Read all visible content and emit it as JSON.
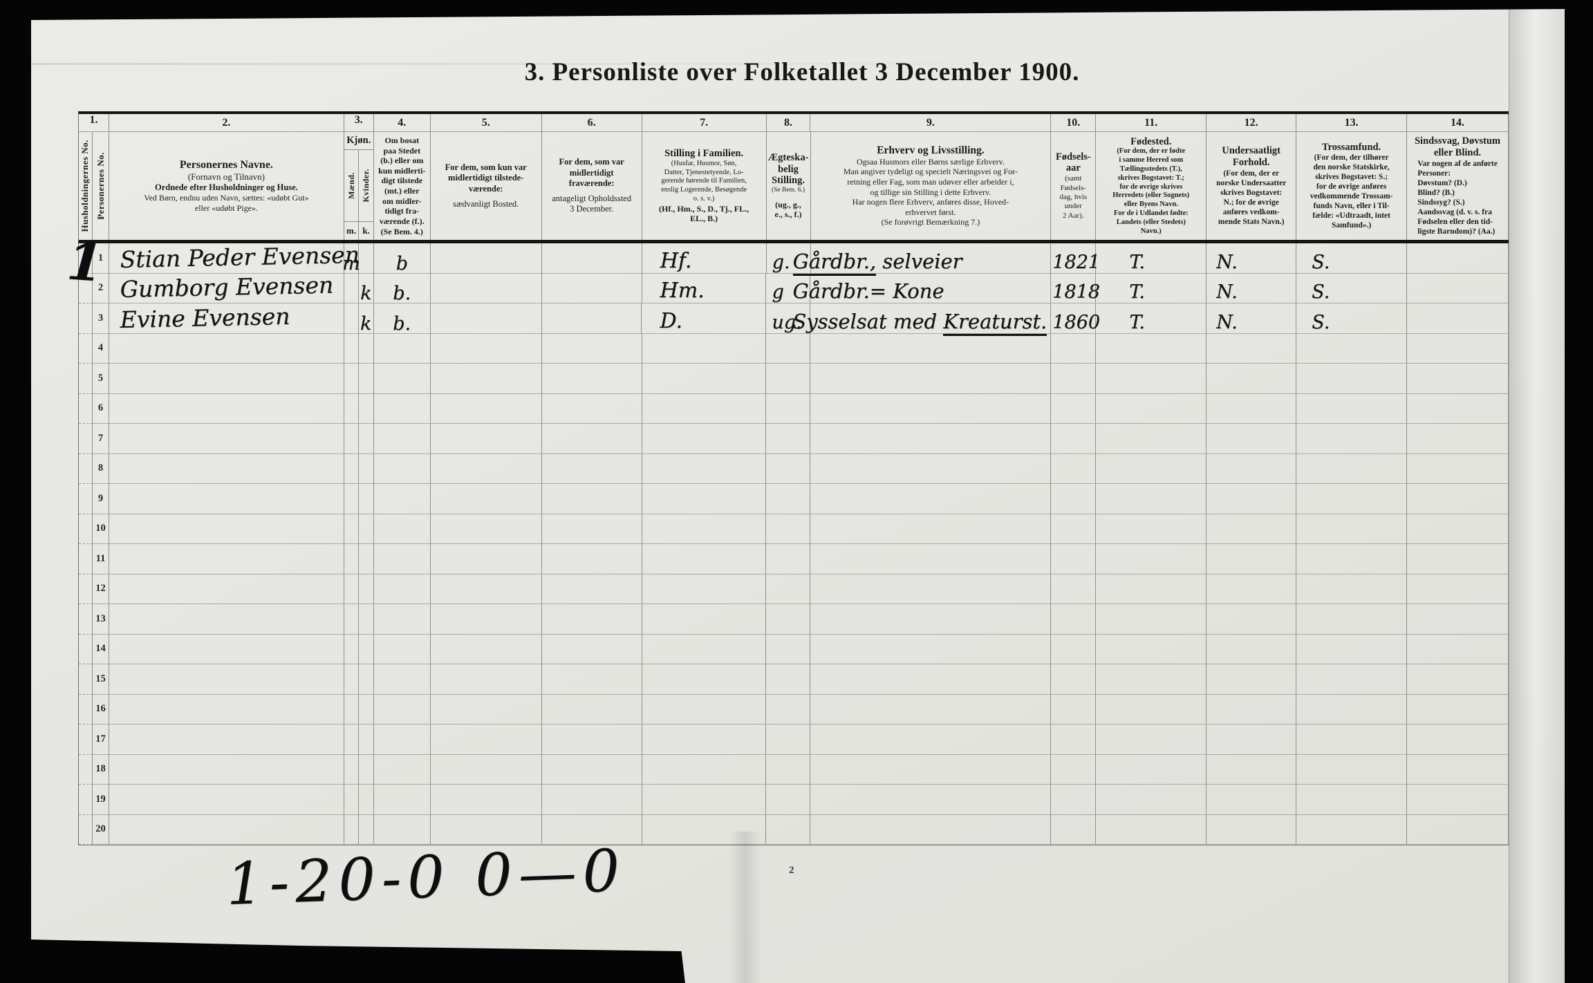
{
  "title": "3. Personliste over Folketallet 3 December 1900.",
  "scan": {
    "page_number": "2",
    "tally": "1-20-0 0—0"
  },
  "header": {
    "col1": {
      "no": "1.",
      "sub_a": "Husholdningernes No.",
      "sub_b": "Personernes No."
    },
    "col2": {
      "no": "2.",
      "title": "Personernes Navne.",
      "line2": "(Fornavn og Tilnavn)",
      "line3": "Ordnede efter Husholdninger og Huse.",
      "line4": "Ved Børn, endnu uden Navn, sættes: «udøbt Gut»",
      "line5": "eller «udøbt Pige»."
    },
    "col3": {
      "no": "3.",
      "title": "Kjøn.",
      "m": "Mænd.",
      "k": "Kvinder.",
      "m_abbr": "m.",
      "k_abbr": "k."
    },
    "col4": {
      "no": "4.",
      "text": "Om bosat\npaa Stedet\n(b.) eller om\nkun midlerti-\ndigt tilstede\n(mt.) eller\nom midler-\ntidigt fra-\nværende (f.).\n(Se Bem. 4.)"
    },
    "col5": {
      "no": "5.",
      "p1": "For dem, som kun var\nmidlertidigt tilstede-\nværende:",
      "p2": "sædvanligt Bosted."
    },
    "col6": {
      "no": "6.",
      "p1": "For dem, som var\nmidlertidigt\nfraværende:",
      "p2": "antageligt Opholdssted\n3 December."
    },
    "col7": {
      "no": "7.",
      "title": "Stilling i Familien.",
      "body": "(Husfar, Husmor, Søn,\nDatter, Tjenestetyende, Lo-\ngerende hørende til Familien,\nenslig Logerende, Besøgende\no. s. v.)",
      "abbr": "(Hf., Hm., S., D., Tj., FL.,\nEL., B.)"
    },
    "col8": {
      "no": "8.",
      "title": "Ægteska-\nbelig\nStilling.",
      "note": "(Se Bem. 6.)",
      "abbr": "(ug., g.,\ne., s., f.)"
    },
    "col9": {
      "no": "9.",
      "title": "Erhverv og Livsstilling.",
      "body": "Ogsaa Husmors eller Børns særlige Erhverv.\nMan angiver tydeligt og specielt Næringsvei og For-\nretning eller Fag, som man udøver eller arbeider i,\nog tillige sin Stilling i dette Erhverv.\nHar nogen flere Erhverv, anføres disse, Hoved-\nerhvervet først.\n(Se forøvrigt Bemærkning 7.)"
    },
    "col10": {
      "no": "10.",
      "title": "Fødsels-\naar",
      "sub": "(samt\nFødsels-\ndag, hvis\nunder\n2 Aar)."
    },
    "col11": {
      "no": "11.",
      "title": "Fødested.",
      "body": "(For dem, der er fødte\ni samme Herred som\nTællingsstedets (T.),\nskrives Bogstavet: T.;\nfor de øvrige skrives\nHerredets (eller Sognets)\neller Byens Navn.\nFor de i Udlandet fødte:\nLandets (eller Stedets)\nNavn.)"
    },
    "col12": {
      "no": "12.",
      "title": "Undersaatligt\nForhold.",
      "body": "(For dem, der er\nnorske Undersaatter\nskrives Bogstavet:\nN.; for de øvrige\nanføres vedkom-\nmende Stats Navn.)"
    },
    "col13": {
      "no": "13.",
      "title": "Trossamfund.",
      "body": "(For dem, der tilhører\nden norske Statskirke,\nskrives Bogstavet: S.;\nfor de øvrige anføres\nvedkommende Trossam-\nfunds Navn, eller i Til-\nfælde: «Udtraadt, intet\nSamfund».)"
    },
    "col14": {
      "no": "14.",
      "title": "Sindssvag, Døvstum\neller Blind.",
      "body": "Var nogen af de anførte\nPersoner:\nDøvstum?      (D.)\nBlind?            (B.)\nSindssyg?      (S.)\nAandssvag (d. v. s. fra\nFødselen eller den tid-\nligste Barndom)? (Aa.)"
    }
  },
  "rows": [
    {
      "no": "1",
      "household": "1",
      "name": "Stian Peder Evensen",
      "m": "m",
      "k": "",
      "bosat": "b",
      "stilling": "Hf.",
      "aegteskab": "g.",
      "erhverv_pre": "",
      "erhverv_mark": "Gårdbr.,",
      "erhverv_post": " selveier",
      "aar": "1821",
      "fodested": "T.",
      "undersaat": "N.",
      "trossamfund": "S."
    },
    {
      "no": "2",
      "household": "",
      "name": "Gumborg Evensen",
      "m": "",
      "k": "k",
      "bosat": "b.",
      "stilling": "Hm.",
      "aegteskab": "g",
      "erhverv_pre": "",
      "erhverv_mark": "",
      "erhverv_post": "Gårdbr.= Kone",
      "aar": "1818",
      "fodested": "T.",
      "undersaat": "N.",
      "trossamfund": "S."
    },
    {
      "no": "3",
      "household": "",
      "name": "Evine Evensen",
      "m": "",
      "k": "k",
      "bosat": "b.",
      "stilling": "D.",
      "aegteskab": "ug.",
      "erhverv_pre": "Sysselsat med ",
      "erhverv_mark": "Kreaturst.",
      "erhverv_post": "",
      "aar": "1860",
      "fodested": "T.",
      "undersaat": "N.",
      "trossamfund": "S."
    },
    {
      "no": "4",
      "household": "",
      "name": "",
      "m": "",
      "k": "",
      "bosat": "",
      "stilling": "",
      "aegteskab": "",
      "erhverv_pre": "",
      "erhverv_mark": "",
      "erhverv_post": "",
      "aar": "",
      "fodested": "",
      "undersaat": "",
      "trossamfund": ""
    },
    {
      "no": "5",
      "household": "",
      "name": "",
      "m": "",
      "k": "",
      "bosat": "",
      "stilling": "",
      "aegteskab": "",
      "erhverv_pre": "",
      "erhverv_mark": "",
      "erhverv_post": "",
      "aar": "",
      "fodested": "",
      "undersaat": "",
      "trossamfund": ""
    },
    {
      "no": "6",
      "household": "",
      "name": "",
      "m": "",
      "k": "",
      "bosat": "",
      "stilling": "",
      "aegteskab": "",
      "erhverv_pre": "",
      "erhverv_mark": "",
      "erhverv_post": "",
      "aar": "",
      "fodested": "",
      "undersaat": "",
      "trossamfund": ""
    },
    {
      "no": "7",
      "household": "",
      "name": "",
      "m": "",
      "k": "",
      "bosat": "",
      "stilling": "",
      "aegteskab": "",
      "erhverv_pre": "",
      "erhverv_mark": "",
      "erhverv_post": "",
      "aar": "",
      "fodested": "",
      "undersaat": "",
      "trossamfund": ""
    },
    {
      "no": "8",
      "household": "",
      "name": "",
      "m": "",
      "k": "",
      "bosat": "",
      "stilling": "",
      "aegteskab": "",
      "erhverv_pre": "",
      "erhverv_mark": "",
      "erhverv_post": "",
      "aar": "",
      "fodested": "",
      "undersaat": "",
      "trossamfund": ""
    },
    {
      "no": "9",
      "household": "",
      "name": "",
      "m": "",
      "k": "",
      "bosat": "",
      "stilling": "",
      "aegteskab": "",
      "erhverv_pre": "",
      "erhverv_mark": "",
      "erhverv_post": "",
      "aar": "",
      "fodested": "",
      "undersaat": "",
      "trossamfund": ""
    },
    {
      "no": "10",
      "household": "",
      "name": "",
      "m": "",
      "k": "",
      "bosat": "",
      "stilling": "",
      "aegteskab": "",
      "erhverv_pre": "",
      "erhverv_mark": "",
      "erhverv_post": "",
      "aar": "",
      "fodested": "",
      "undersaat": "",
      "trossamfund": ""
    },
    {
      "no": "11",
      "household": "",
      "name": "",
      "m": "",
      "k": "",
      "bosat": "",
      "stilling": "",
      "aegteskab": "",
      "erhverv_pre": "",
      "erhverv_mark": "",
      "erhverv_post": "",
      "aar": "",
      "fodested": "",
      "undersaat": "",
      "trossamfund": ""
    },
    {
      "no": "12",
      "household": "",
      "name": "",
      "m": "",
      "k": "",
      "bosat": "",
      "stilling": "",
      "aegteskab": "",
      "erhverv_pre": "",
      "erhverv_mark": "",
      "erhverv_post": "",
      "aar": "",
      "fodested": "",
      "undersaat": "",
      "trossamfund": ""
    },
    {
      "no": "13",
      "household": "",
      "name": "",
      "m": "",
      "k": "",
      "bosat": "",
      "stilling": "",
      "aegteskab": "",
      "erhverv_pre": "",
      "erhverv_mark": "",
      "erhverv_post": "",
      "aar": "",
      "fodested": "",
      "undersaat": "",
      "trossamfund": ""
    },
    {
      "no": "14",
      "household": "",
      "name": "",
      "m": "",
      "k": "",
      "bosat": "",
      "stilling": "",
      "aegteskab": "",
      "erhverv_pre": "",
      "erhverv_mark": "",
      "erhverv_post": "",
      "aar": "",
      "fodested": "",
      "undersaat": "",
      "trossamfund": ""
    },
    {
      "no": "15",
      "household": "",
      "name": "",
      "m": "",
      "k": "",
      "bosat": "",
      "stilling": "",
      "aegteskab": "",
      "erhverv_pre": "",
      "erhverv_mark": "",
      "erhverv_post": "",
      "aar": "",
      "fodested": "",
      "undersaat": "",
      "trossamfund": ""
    },
    {
      "no": "16",
      "household": "",
      "name": "",
      "m": "",
      "k": "",
      "bosat": "",
      "stilling": "",
      "aegteskab": "",
      "erhverv_pre": "",
      "erhverv_mark": "",
      "erhverv_post": "",
      "aar": "",
      "fodested": "",
      "undersaat": "",
      "trossamfund": ""
    },
    {
      "no": "17",
      "household": "",
      "name": "",
      "m": "",
      "k": "",
      "bosat": "",
      "stilling": "",
      "aegteskab": "",
      "erhverv_pre": "",
      "erhverv_mark": "",
      "erhverv_post": "",
      "aar": "",
      "fodested": "",
      "undersaat": "",
      "trossamfund": ""
    },
    {
      "no": "18",
      "household": "",
      "name": "",
      "m": "",
      "k": "",
      "bosat": "",
      "stilling": "",
      "aegteskab": "",
      "erhverv_pre": "",
      "erhverv_mark": "",
      "erhverv_post": "",
      "aar": "",
      "fodested": "",
      "undersaat": "",
      "trossamfund": ""
    },
    {
      "no": "19",
      "household": "",
      "name": "",
      "m": "",
      "k": "",
      "bosat": "",
      "stilling": "",
      "aegteskab": "",
      "erhverv_pre": "",
      "erhverv_mark": "",
      "erhverv_post": "",
      "aar": "",
      "fodested": "",
      "undersaat": "",
      "trossamfund": ""
    },
    {
      "no": "20",
      "household": "",
      "name": "",
      "m": "",
      "k": "",
      "bosat": "",
      "stilling": "",
      "aegteskab": "",
      "erhverv_pre": "",
      "erhverv_mark": "",
      "erhverv_post": "",
      "aar": "",
      "fodested": "",
      "undersaat": "",
      "trossamfund": ""
    }
  ]
}
